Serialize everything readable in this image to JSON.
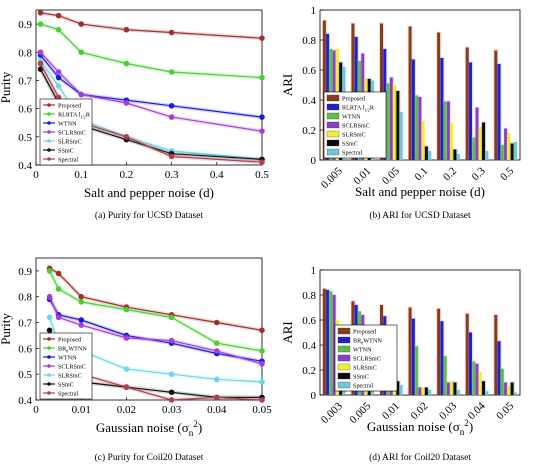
{
  "panels": [
    {
      "caption": "(a) Purity for UCSD Dataset",
      "chart_data": {
        "type": "line",
        "xlabel": "Salt and pepper noise (d)",
        "ylabel": "Purity",
        "xlim": [
          0,
          0.5
        ],
        "ylim": [
          0.4,
          0.95
        ],
        "xticks": [
          "0",
          "0.1",
          "0.2",
          "0.3",
          "0.4",
          "0.5"
        ],
        "yticks": [
          "0.4",
          "0.5",
          "0.6",
          "0.7",
          "0.8",
          "0.9"
        ],
        "legend_position": "bottom-left",
        "x": [
          0.01,
          0.05,
          0.1,
          0.2,
          0.3,
          0.5
        ],
        "series": [
          {
            "name": "Proposed",
            "color": "#a0302a",
            "values": [
              0.94,
              0.93,
              0.9,
              0.88,
              0.87,
              0.85
            ]
          },
          {
            "name": "RLRTA l_{1/2}R",
            "color": "#44d22c",
            "values": [
              0.9,
              0.88,
              0.8,
              0.76,
              0.73,
              0.71
            ]
          },
          {
            "name": "WTNN",
            "color": "#1b1be0",
            "values": [
              0.79,
              0.71,
              0.65,
              0.63,
              0.61,
              0.57
            ]
          },
          {
            "name": "SCLRSmC",
            "color": "#a53fd8",
            "values": [
              0.8,
              0.73,
              0.65,
              0.62,
              0.57,
              0.52
            ]
          },
          {
            "name": "SLRSmC",
            "color": "#67d7ec",
            "values": [
              0.77,
              0.68,
              0.56,
              0.5,
              0.45,
              0.42
            ]
          },
          {
            "name": "SSmC",
            "color": "#111111",
            "values": [
              0.74,
              0.62,
              0.54,
              0.49,
              0.44,
              0.42
            ]
          },
          {
            "name": "Spectral",
            "color": "#b04050",
            "values": [
              0.76,
              0.64,
              0.55,
              0.5,
              0.43,
              0.41
            ]
          }
        ]
      }
    },
    {
      "caption": "(b) ARI for UCSD Dataset",
      "chart_data": {
        "type": "bar",
        "xlabel": "Salt and pepper noise (d)",
        "ylabel": "ARI",
        "ylim": [
          0,
          1
        ],
        "yticks": [
          "0",
          "0.2",
          "0.4",
          "0.6",
          "0.8",
          "1"
        ],
        "categories": [
          "0.005",
          "0.01",
          "0.05",
          "0.1",
          "0.2",
          "0.3",
          "0.5"
        ],
        "legend_position": "bottom-left",
        "series": [
          {
            "name": "Proposed",
            "color": "#8b3a1a",
            "values": [
              0.93,
              0.91,
              0.91,
              0.89,
              0.85,
              0.75,
              0.73
            ]
          },
          {
            "name": "RLRTA l_{1/2}R",
            "color": "#1f1fd0",
            "values": [
              0.84,
              0.82,
              0.74,
              0.67,
              0.68,
              0.65,
              0.64
            ]
          },
          {
            "name": "WTNN",
            "color": "#5fbe4a",
            "values": [
              0.74,
              0.66,
              0.51,
              0.43,
              0.39,
              0.15,
              0.1
            ]
          },
          {
            "name": "SCLRSmC",
            "color": "#8a3ec8",
            "values": [
              0.73,
              0.71,
              0.55,
              0.42,
              0.39,
              0.35,
              0.21
            ]
          },
          {
            "name": "SLRSmC",
            "color": "#f2ee30",
            "values": [
              0.74,
              0.54,
              0.5,
              0.26,
              0.25,
              0.22,
              0.18
            ]
          },
          {
            "name": "SSmC",
            "color": "#0a0a0a",
            "values": [
              0.65,
              0.54,
              0.46,
              0.09,
              0.07,
              0.25,
              0.11
            ]
          },
          {
            "name": "Spectral",
            "color": "#6fc6d8",
            "values": [
              0.62,
              0.53,
              0.32,
              0.06,
              0.04,
              0.06,
              0.12
            ]
          }
        ]
      }
    },
    {
      "caption": "(c) Purity for Coil20 Dataset",
      "chart_data": {
        "type": "line",
        "xlabel": "Gaussian noise (σ_n^2)",
        "ylabel": "Purity",
        "xlim": [
          0,
          0.05
        ],
        "ylim": [
          0.4,
          0.95
        ],
        "xticks": [
          "0",
          "0.01",
          "0.02",
          "0.03",
          "0.04",
          "0.05"
        ],
        "yticks": [
          "0.4",
          "0.5",
          "0.6",
          "0.7",
          "0.8",
          "0.9"
        ],
        "legend_position": "bottom-left",
        "x": [
          0.003,
          0.005,
          0.01,
          0.02,
          0.03,
          0.04,
          0.05
        ],
        "series": [
          {
            "name": "Proposed",
            "color": "#a0302a",
            "values": [
              0.91,
              0.89,
              0.8,
              0.76,
              0.73,
              0.7,
              0.67
            ]
          },
          {
            "name": "BR_θWTNN",
            "color": "#44d22c",
            "values": [
              0.9,
              0.83,
              0.78,
              0.75,
              0.72,
              0.62,
              0.59
            ]
          },
          {
            "name": "WTNN",
            "color": "#1b1be0",
            "values": [
              0.79,
              0.73,
              0.71,
              0.65,
              0.62,
              0.58,
              0.55
            ]
          },
          {
            "name": "SCLRSmC",
            "color": "#a53fd8",
            "values": [
              0.8,
              0.72,
              0.69,
              0.64,
              0.63,
              0.59,
              0.54
            ]
          },
          {
            "name": "SLRSmC",
            "color": "#67d7ec",
            "values": [
              0.72,
              0.62,
              0.59,
              0.52,
              0.5,
              0.48,
              0.47
            ]
          },
          {
            "name": "SSmC",
            "color": "#111111",
            "values": [
              0.67,
              0.49,
              0.47,
              0.45,
              0.43,
              0.41,
              0.41
            ]
          },
          {
            "name": "Spectral",
            "color": "#b04050",
            "values": [
              0.63,
              0.55,
              0.5,
              0.45,
              0.4,
              0.41,
              0.4
            ]
          }
        ]
      }
    },
    {
      "caption": "(d) ARI for Coil20 Dataset",
      "chart_data": {
        "type": "bar",
        "xlabel": "Gaussian noise (σ_n^2)",
        "ylabel": "ARI",
        "ylim": [
          0,
          1
        ],
        "yticks": [
          "0",
          "0.2",
          "0.4",
          "0.6",
          "0.8",
          "1"
        ],
        "categories": [
          "0.003",
          "0.005",
          "0.01",
          "0.02",
          "0.03",
          "0.04",
          "0.05"
        ],
        "legend_position": "center-right",
        "series": [
          {
            "name": "Proposed",
            "color": "#8b3a1a",
            "values": [
              0.85,
              0.75,
              0.72,
              0.7,
              0.69,
              0.65,
              0.64
            ]
          },
          {
            "name": "BR_θWTNN",
            "color": "#1f1fd0",
            "values": [
              0.84,
              0.72,
              0.63,
              0.61,
              0.59,
              0.5,
              0.43
            ]
          },
          {
            "name": "WTNN",
            "color": "#5fbe4a",
            "values": [
              0.83,
              0.67,
              0.52,
              0.39,
              0.31,
              0.27,
              0.21
            ]
          },
          {
            "name": "SCLRSmC",
            "color": "#8a3ec8",
            "values": [
              0.8,
              0.64,
              0.47,
              0.06,
              0.1,
              0.25,
              0.1
            ]
          },
          {
            "name": "SLRSmC",
            "color": "#f2ee30",
            "values": [
              0.6,
              0.5,
              0.15,
              0.06,
              0.11,
              0.18,
              0.07
            ]
          },
          {
            "name": "SSmC",
            "color": "#0a0a0a",
            "values": [
              0.54,
              0.45,
              0.11,
              0.06,
              0.1,
              0.11,
              0.1
            ]
          },
          {
            "name": "Spectral",
            "color": "#6fc6d8",
            "values": [
              0.53,
              0.47,
              0.08,
              0.04,
              0.04,
              0.03,
              0.02
            ]
          }
        ]
      }
    }
  ]
}
